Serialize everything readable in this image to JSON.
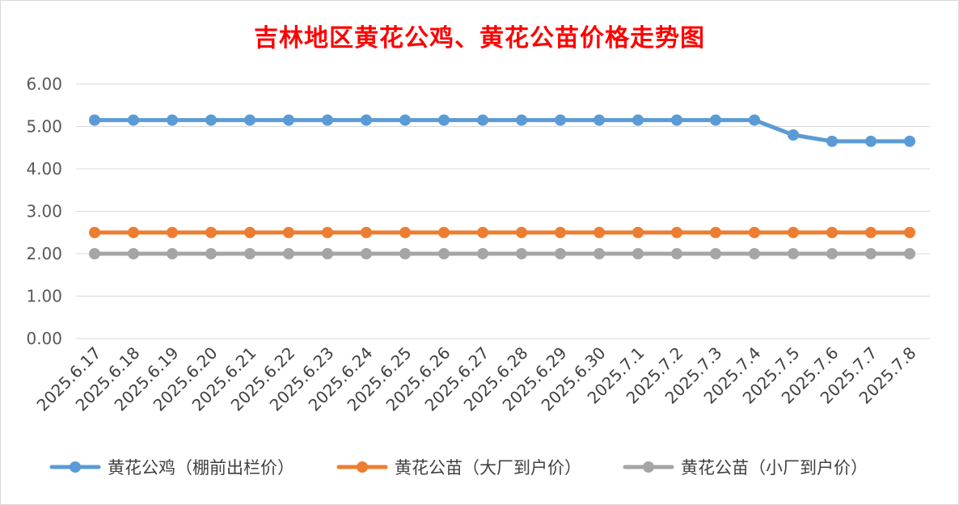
{
  "chart_data": {
    "type": "line",
    "title": "吉林地区黄花公鸡、黄花公苗价格走势图",
    "categories": [
      "2025.6.17",
      "2025.6.18",
      "2025.6.19",
      "2025.6.20",
      "2025.6.21",
      "2025.6.22",
      "2025.6.23",
      "2025.6.24",
      "2025.6.25",
      "2025.6.26",
      "2025.6.27",
      "2025.6.28",
      "2025.6.29",
      "2025.6.30",
      "2025.7.1",
      "2025.7.2",
      "2025.7.3",
      "2025.7.4",
      "2025.7.5",
      "2025.7.6",
      "2025.7.7",
      "2025.7.8"
    ],
    "ylim": [
      0,
      6
    ],
    "yticks": [
      "0.00",
      "1.00",
      "2.00",
      "3.00",
      "4.00",
      "5.00",
      "6.00"
    ],
    "grid": true,
    "legend_position": "bottom",
    "series": [
      {
        "name": "黄花公鸡（棚前出栏价）",
        "color": "#5b9bd5",
        "values": [
          5.15,
          5.15,
          5.15,
          5.15,
          5.15,
          5.15,
          5.15,
          5.15,
          5.15,
          5.15,
          5.15,
          5.15,
          5.15,
          5.15,
          5.15,
          5.15,
          5.15,
          5.15,
          4.8,
          4.65,
          4.65,
          4.65
        ]
      },
      {
        "name": "黄花公苗（大厂到户价）",
        "color": "#ed7d31",
        "values": [
          2.5,
          2.5,
          2.5,
          2.5,
          2.5,
          2.5,
          2.5,
          2.5,
          2.5,
          2.5,
          2.5,
          2.5,
          2.5,
          2.5,
          2.5,
          2.5,
          2.5,
          2.5,
          2.5,
          2.5,
          2.5,
          2.5
        ]
      },
      {
        "name": "黄花公苗（小厂到户价）",
        "color": "#a5a5a5",
        "values": [
          2.0,
          2.0,
          2.0,
          2.0,
          2.0,
          2.0,
          2.0,
          2.0,
          2.0,
          2.0,
          2.0,
          2.0,
          2.0,
          2.0,
          2.0,
          2.0,
          2.0,
          2.0,
          2.0,
          2.0,
          2.0,
          2.0
        ]
      }
    ]
  }
}
